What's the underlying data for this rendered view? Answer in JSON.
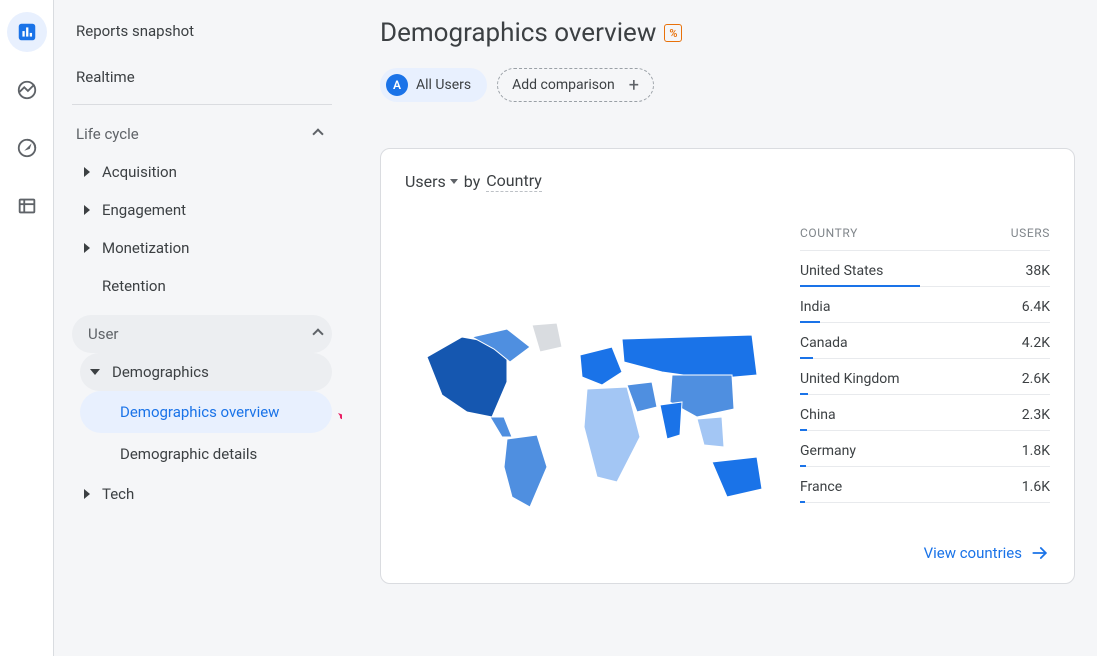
{
  "colors": {
    "accent": "#1a73e8",
    "text": "#3c4043",
    "text_muted": "#5f6368",
    "border": "#dadce0",
    "row_border": "#e8eaed",
    "page_bg": "#f5f6f8",
    "card_bg": "#ffffff",
    "selected_bg": "#e8f0fe",
    "pill_bg": "#eceef1",
    "beta": "#e8710a",
    "arrow_annotation": "#e91e63",
    "map_light": "#a3c6f4",
    "map_mid": "#4f8fe0",
    "map_dark": "#1a73e8",
    "map_darker": "#1557b0",
    "map_empty": "#d9dce0"
  },
  "fonts": {
    "base_family": "Google Sans, Roboto, Arial, sans-serif",
    "title_size_pt": 20,
    "body_size_pt": 11,
    "header_letter_spacing": 0.6
  },
  "rail": {
    "items": [
      {
        "name": "reports-icon",
        "active": true
      },
      {
        "name": "explore-icon",
        "active": false
      },
      {
        "name": "advertising-icon",
        "active": false
      },
      {
        "name": "configure-icon",
        "active": false
      }
    ]
  },
  "sidebar": {
    "snapshot": "Reports snapshot",
    "realtime": "Realtime",
    "life_cycle": {
      "label": "Life cycle",
      "items": [
        {
          "label": "Acquisition",
          "expandable": true
        },
        {
          "label": "Engagement",
          "expandable": true
        },
        {
          "label": "Monetization",
          "expandable": true
        },
        {
          "label": "Retention",
          "expandable": false
        }
      ]
    },
    "user": {
      "label": "User",
      "demographics": {
        "label": "Demographics",
        "children": [
          {
            "label": "Demographics overview",
            "selected": true
          },
          {
            "label": "Demographic details",
            "selected": false
          }
        ]
      },
      "tech": {
        "label": "Tech"
      }
    }
  },
  "page": {
    "title": "Demographics overview",
    "beta_glyph": "%",
    "chips": {
      "all_users": {
        "badge": "A",
        "label": "All Users"
      },
      "add": {
        "label": "Add comparison"
      }
    }
  },
  "card": {
    "metric_label": "Users",
    "by_word": "by",
    "dimension_label": "Country",
    "columns": {
      "dimension": "COUNTRY",
      "metric": "USERS"
    },
    "max_value": 38000,
    "bar_max_width_pct": 48,
    "rows": [
      {
        "country": "United States",
        "users_display": "38K",
        "users": 38000
      },
      {
        "country": "India",
        "users_display": "6.4K",
        "users": 6400
      },
      {
        "country": "Canada",
        "users_display": "4.2K",
        "users": 4200
      },
      {
        "country": "United Kingdom",
        "users_display": "2.6K",
        "users": 2600
      },
      {
        "country": "China",
        "users_display": "2.3K",
        "users": 2300
      },
      {
        "country": "Germany",
        "users_display": "1.8K",
        "users": 1800
      },
      {
        "country": "France",
        "users_display": "1.6K",
        "users": 1600
      }
    ],
    "footer_link": "View countries"
  }
}
